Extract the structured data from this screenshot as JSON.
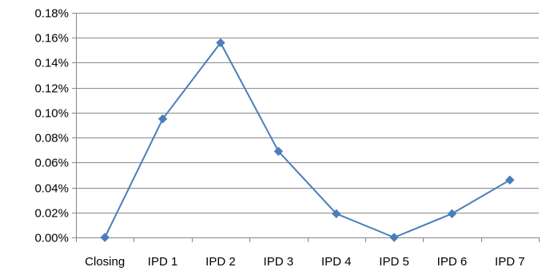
{
  "chart_data": {
    "type": "line",
    "title": "",
    "xlabel": "",
    "ylabel": "",
    "categories": [
      "Closing",
      "IPD 1",
      "IPD 2",
      "IPD 3",
      "IPD 4",
      "IPD 5",
      "IPD 6",
      "IPD 7"
    ],
    "series": [
      {
        "values": [
          0.0,
          0.095,
          0.156,
          0.069,
          0.019,
          0.0,
          0.019,
          0.046
        ],
        "color": "#4a7ebb",
        "marker": "diamond"
      }
    ],
    "ylim": [
      0,
      0.18
    ],
    "yticks": [
      0,
      0.02,
      0.04,
      0.06,
      0.08,
      0.1,
      0.12,
      0.14,
      0.16,
      0.18
    ],
    "ytick_labels": [
      "0.00%",
      "0.02%",
      "0.04%",
      "0.06%",
      "0.08%",
      "0.10%",
      "0.12%",
      "0.14%",
      "0.16%",
      "0.18%"
    ],
    "grid": true,
    "legend": "none"
  }
}
